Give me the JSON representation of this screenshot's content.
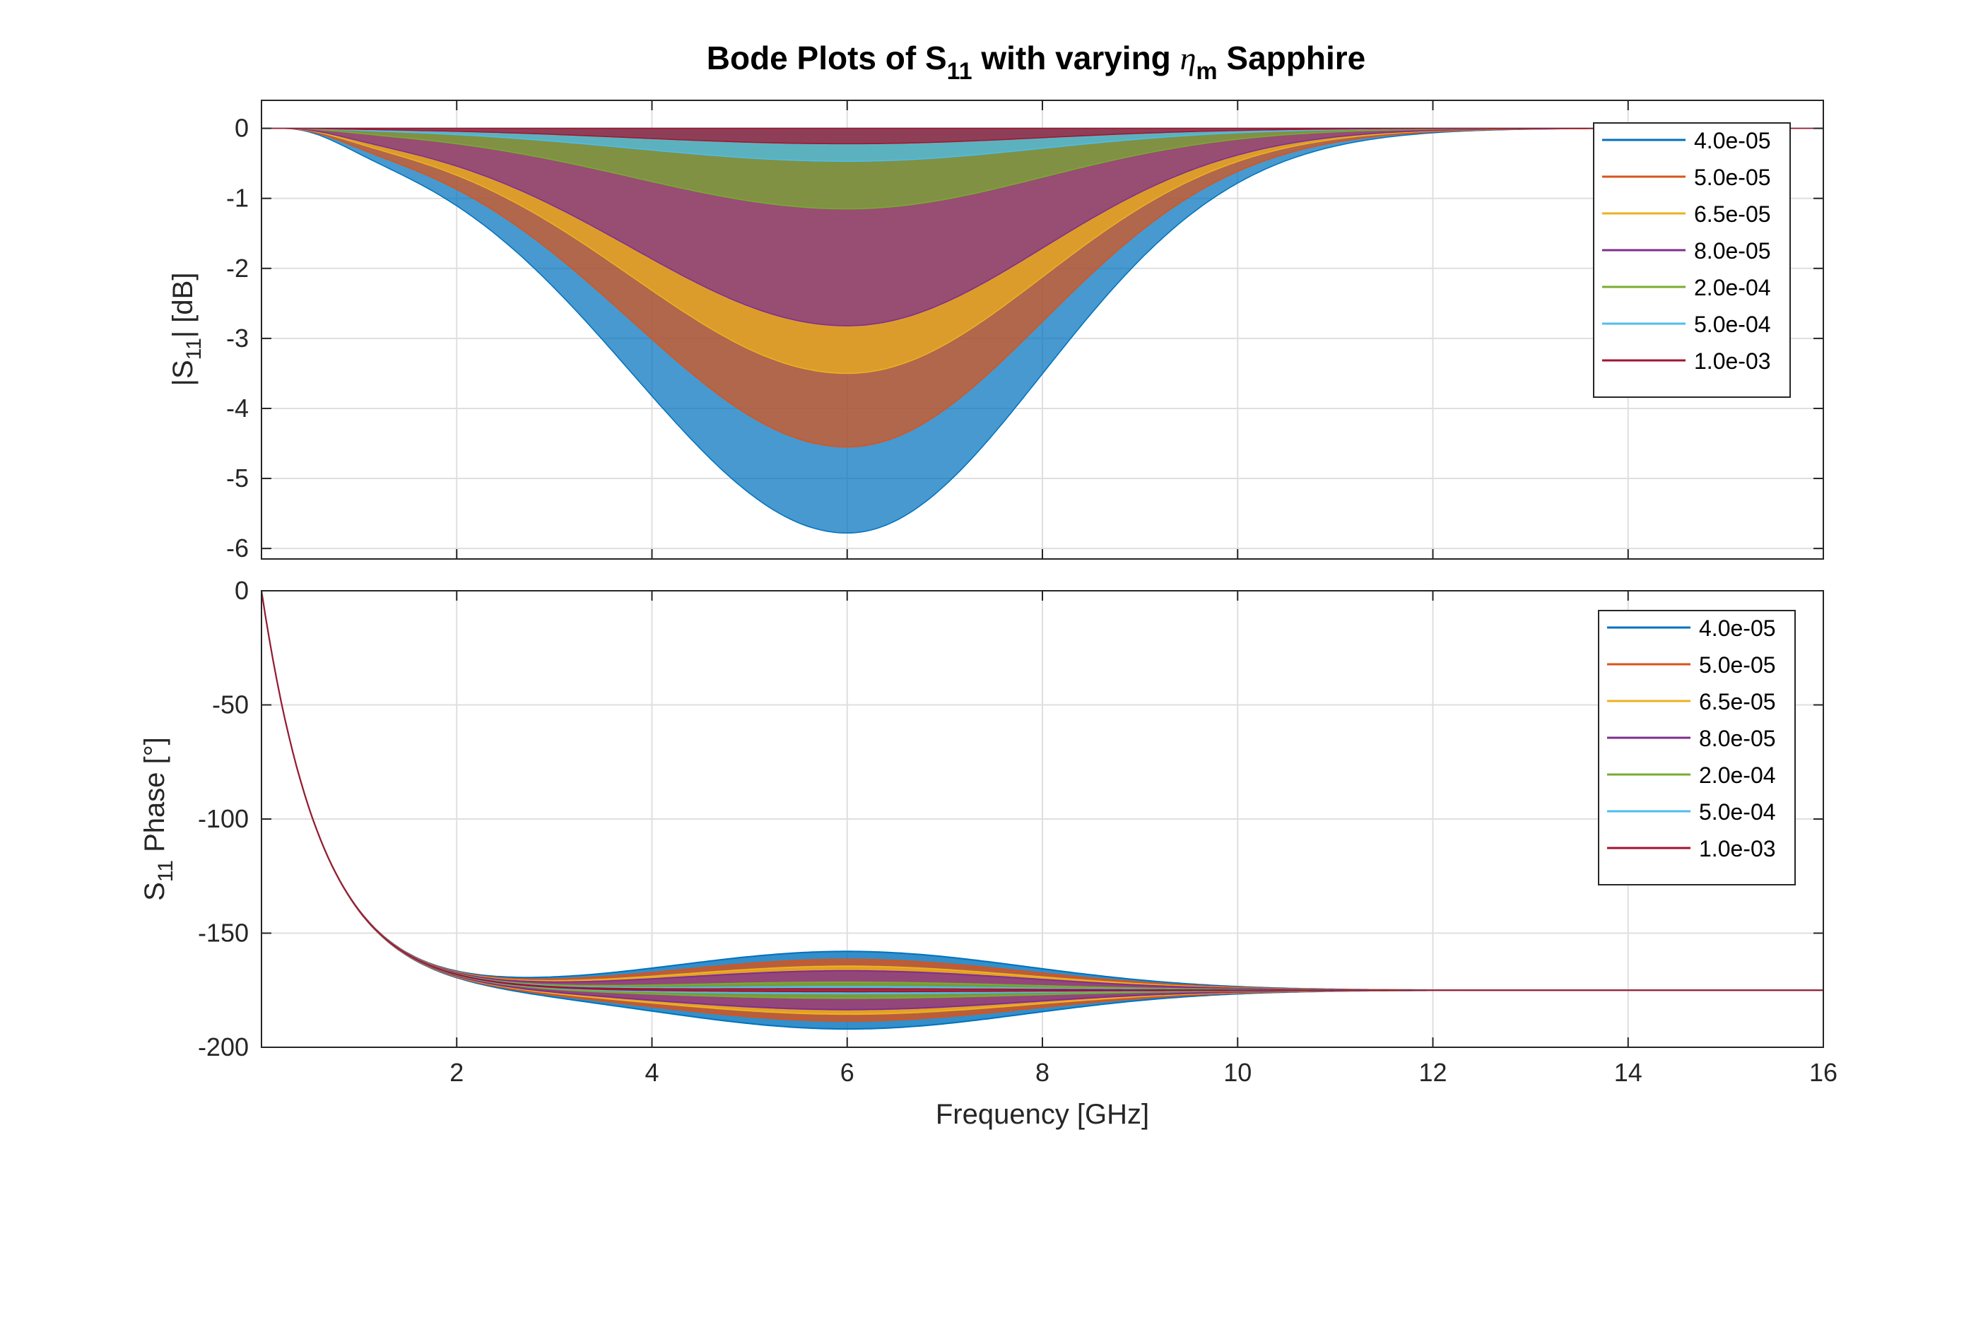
{
  "chart_data": {
    "title": {
      "part1": "Bode Plots of S",
      "sub1": "11",
      "part2": " with varying ",
      "symbol": "η",
      "sub2": "m",
      "part3": " Sapphire"
    },
    "xlabel": "Frequency [GHz]",
    "x_ticks": [
      2,
      4,
      6,
      8,
      10,
      12,
      14,
      16
    ],
    "xlim": [
      0,
      16
    ],
    "grid": true,
    "legend_placement": "top-right",
    "series_colors": [
      "#0072BD",
      "#D95319",
      "#EDB120",
      "#7E2F8E",
      "#77AC30",
      "#4DBEEE",
      "#A2142F"
    ],
    "legend_entries": [
      "4.0e-05",
      "5.0e-05",
      "6.5e-05",
      "8.0e-05",
      "2.0e-04",
      "5.0e-04",
      "1.0e-03"
    ],
    "charts": [
      {
        "type": "area",
        "ylabel": {
          "pre": "|S",
          "sub": "11",
          "post": "| [dB]"
        },
        "ylim": [
          -6.15,
          0.4
        ],
        "y_ticks": [
          0,
          -1,
          -2,
          -3,
          -4,
          -5,
          -6
        ],
        "y_tick_labels": [
          "0",
          "-1",
          "-2",
          "-3",
          "-4",
          "-5",
          "-6"
        ],
        "band_center_x": 6.0,
        "band_left_width": 2.2,
        "band_right_width": 2.0,
        "series": [
          {
            "name": "4.0e-05",
            "min_db": -5.78
          },
          {
            "name": "5.0e-05",
            "min_db": -4.55
          },
          {
            "name": "6.5e-05",
            "min_db": -3.5
          },
          {
            "name": "8.0e-05",
            "min_db": -2.82
          },
          {
            "name": "2.0e-04",
            "min_db": -1.15
          },
          {
            "name": "5.0e-04",
            "min_db": -0.47
          },
          {
            "name": "1.0e-03",
            "min_db": -0.22
          }
        ]
      },
      {
        "type": "line",
        "ylabel": {
          "pre": "S",
          "sub": "11",
          "post": " Phase [°]"
        },
        "ylim": [
          -200,
          0
        ],
        "y_ticks": [
          0,
          -50,
          -100,
          -150,
          -200
        ],
        "y_tick_labels": [
          "0",
          "-50",
          "-100",
          "-150",
          "-200"
        ],
        "asymptote_deg": -175,
        "start_deg": 0,
        "band_center_x": 6.0,
        "series": [
          {
            "name": "4.0e-05",
            "band_halfwidth_deg": 17
          },
          {
            "name": "5.0e-05",
            "band_halfwidth_deg": 13.5
          },
          {
            "name": "6.5e-05",
            "band_halfwidth_deg": 10.5
          },
          {
            "name": "8.0e-05",
            "band_halfwidth_deg": 8.5
          },
          {
            "name": "2.0e-04",
            "band_halfwidth_deg": 3.5
          },
          {
            "name": "5.0e-04",
            "band_halfwidth_deg": 1.5
          },
          {
            "name": "1.0e-03",
            "band_halfwidth_deg": 0.6
          }
        ]
      }
    ]
  }
}
